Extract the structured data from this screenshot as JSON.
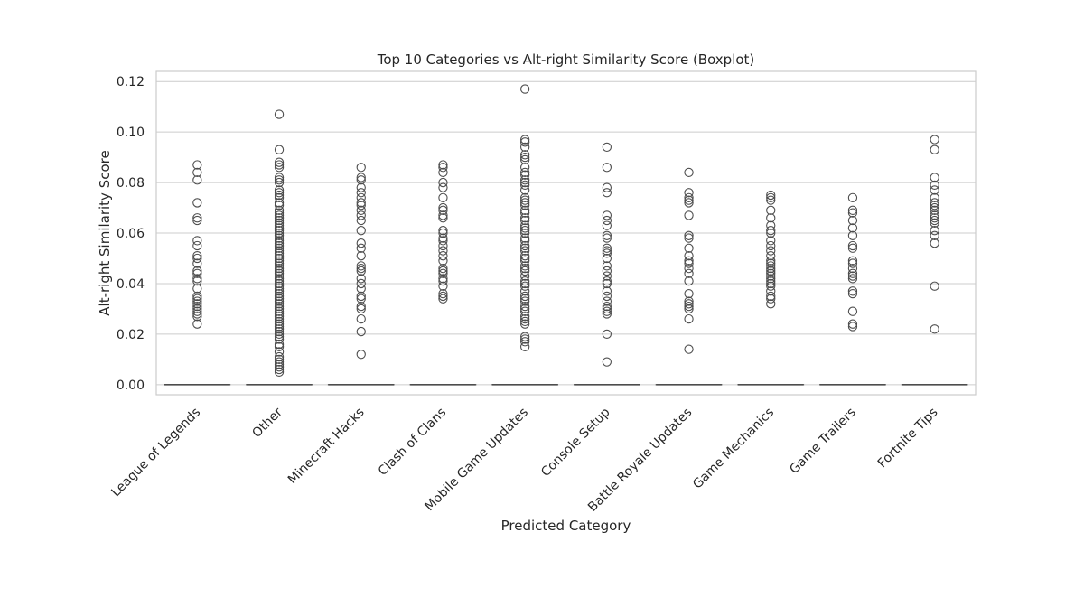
{
  "chart_data": {
    "type": "boxplot",
    "title": "Top 10 Categories vs Alt-right Similarity Score (Boxplot)",
    "xlabel": "Predicted Category",
    "ylabel": "Alt-right Similarity Score",
    "ylim": [
      -0.004,
      0.124
    ],
    "yticks": [
      0.0,
      0.02,
      0.04,
      0.06,
      0.08,
      0.1,
      0.12
    ],
    "ytick_labels": [
      "0.00",
      "0.02",
      "0.04",
      "0.06",
      "0.08",
      "0.10",
      "0.12"
    ],
    "grid": true,
    "categories": [
      "League of Legends",
      "Other",
      "Minecraft Hacks",
      "Clash of Clans",
      "Mobile Game Updates",
      "Console Setup",
      "Battle Royale Updates",
      "Game Mechanics",
      "Game Trailers",
      "Fortnite Tips"
    ],
    "boxes": [
      {
        "median": 0,
        "q1": 0,
        "q3": 0,
        "whisker_low": 0,
        "whisker_high": 0,
        "outliers": [
          0.087,
          0.084,
          0.081,
          0.072,
          0.066,
          0.065,
          0.057,
          0.055,
          0.051,
          0.05,
          0.048,
          0.045,
          0.044,
          0.042,
          0.041,
          0.038,
          0.035,
          0.034,
          0.033,
          0.032,
          0.031,
          0.03,
          0.029,
          0.028,
          0.027,
          0.024
        ]
      },
      {
        "median": 0,
        "q1": 0,
        "q3": 0,
        "whisker_low": 0,
        "whisker_high": 0,
        "outliers": [
          0.107,
          0.093,
          0.088,
          0.087,
          0.086,
          0.082,
          0.081,
          0.08,
          0.077,
          0.076,
          0.075,
          0.074,
          0.072,
          0.071,
          0.069,
          0.068,
          0.067,
          0.066,
          0.065,
          0.064,
          0.063,
          0.062,
          0.061,
          0.06,
          0.059,
          0.058,
          0.057,
          0.056,
          0.055,
          0.054,
          0.053,
          0.052,
          0.051,
          0.05,
          0.049,
          0.048,
          0.047,
          0.046,
          0.045,
          0.044,
          0.043,
          0.042,
          0.041,
          0.04,
          0.039,
          0.038,
          0.037,
          0.036,
          0.035,
          0.034,
          0.033,
          0.032,
          0.031,
          0.03,
          0.029,
          0.028,
          0.027,
          0.026,
          0.025,
          0.024,
          0.023,
          0.022,
          0.021,
          0.02,
          0.019,
          0.018,
          0.016,
          0.015,
          0.013,
          0.011,
          0.01,
          0.009,
          0.008,
          0.007,
          0.006,
          0.005
        ]
      },
      {
        "median": 0,
        "q1": 0,
        "q3": 0,
        "whisker_low": 0,
        "whisker_high": 0,
        "outliers": [
          0.086,
          0.082,
          0.081,
          0.078,
          0.076,
          0.074,
          0.072,
          0.071,
          0.069,
          0.067,
          0.065,
          0.061,
          0.056,
          0.054,
          0.051,
          0.047,
          0.046,
          0.045,
          0.042,
          0.04,
          0.038,
          0.035,
          0.034,
          0.031,
          0.03,
          0.026,
          0.021,
          0.012
        ]
      },
      {
        "median": 0,
        "q1": 0,
        "q3": 0,
        "whisker_low": 0,
        "whisker_high": 0,
        "outliers": [
          0.087,
          0.086,
          0.084,
          0.08,
          0.078,
          0.074,
          0.07,
          0.069,
          0.067,
          0.066,
          0.061,
          0.06,
          0.058,
          0.057,
          0.055,
          0.053,
          0.051,
          0.049,
          0.046,
          0.045,
          0.044,
          0.042,
          0.041,
          0.039,
          0.036,
          0.035,
          0.034
        ]
      },
      {
        "median": 0,
        "q1": 0,
        "q3": 0,
        "whisker_low": 0,
        "whisker_high": 0,
        "outliers": [
          0.117,
          0.097,
          0.096,
          0.094,
          0.091,
          0.09,
          0.089,
          0.086,
          0.084,
          0.083,
          0.081,
          0.08,
          0.079,
          0.077,
          0.074,
          0.073,
          0.072,
          0.071,
          0.069,
          0.068,
          0.066,
          0.065,
          0.063,
          0.062,
          0.061,
          0.06,
          0.058,
          0.057,
          0.055,
          0.054,
          0.053,
          0.051,
          0.05,
          0.049,
          0.047,
          0.046,
          0.045,
          0.043,
          0.041,
          0.04,
          0.039,
          0.037,
          0.035,
          0.034,
          0.033,
          0.031,
          0.03,
          0.029,
          0.027,
          0.026,
          0.025,
          0.024,
          0.019,
          0.018,
          0.017,
          0.015
        ]
      },
      {
        "median": 0,
        "q1": 0,
        "q3": 0,
        "whisker_low": 0,
        "whisker_high": 0,
        "outliers": [
          0.094,
          0.086,
          0.078,
          0.076,
          0.067,
          0.065,
          0.063,
          0.059,
          0.058,
          0.054,
          0.053,
          0.052,
          0.05,
          0.047,
          0.045,
          0.043,
          0.041,
          0.04,
          0.037,
          0.035,
          0.033,
          0.031,
          0.03,
          0.029,
          0.028,
          0.02,
          0.009
        ]
      },
      {
        "median": 0,
        "q1": 0,
        "q3": 0,
        "whisker_low": 0,
        "whisker_high": 0,
        "outliers": [
          0.084,
          0.076,
          0.074,
          0.073,
          0.072,
          0.067,
          0.059,
          0.058,
          0.054,
          0.051,
          0.049,
          0.048,
          0.046,
          0.044,
          0.041,
          0.036,
          0.033,
          0.032,
          0.031,
          0.03,
          0.026,
          0.014
        ]
      },
      {
        "median": 0,
        "q1": 0,
        "q3": 0,
        "whisker_low": 0,
        "whisker_high": 0,
        "outliers": [
          0.075,
          0.074,
          0.073,
          0.069,
          0.066,
          0.063,
          0.061,
          0.06,
          0.057,
          0.055,
          0.053,
          0.051,
          0.049,
          0.048,
          0.047,
          0.046,
          0.045,
          0.044,
          0.043,
          0.042,
          0.041,
          0.04,
          0.039,
          0.037,
          0.035,
          0.034,
          0.032
        ]
      },
      {
        "median": 0,
        "q1": 0,
        "q3": 0,
        "whisker_low": 0,
        "whisker_high": 0,
        "outliers": [
          0.074,
          0.069,
          0.068,
          0.065,
          0.062,
          0.059,
          0.055,
          0.054,
          0.049,
          0.048,
          0.046,
          0.044,
          0.043,
          0.042,
          0.037,
          0.036,
          0.029,
          0.024,
          0.023
        ]
      },
      {
        "median": 0,
        "q1": 0,
        "q3": 0,
        "whisker_low": 0,
        "whisker_high": 0,
        "outliers": [
          0.097,
          0.093,
          0.082,
          0.079,
          0.077,
          0.074,
          0.072,
          0.071,
          0.07,
          0.069,
          0.067,
          0.066,
          0.065,
          0.064,
          0.061,
          0.059,
          0.056,
          0.039,
          0.022
        ]
      }
    ],
    "colors": {
      "marker": "#4d4d4d",
      "grid": "#cccccc",
      "text": "#262626"
    }
  }
}
